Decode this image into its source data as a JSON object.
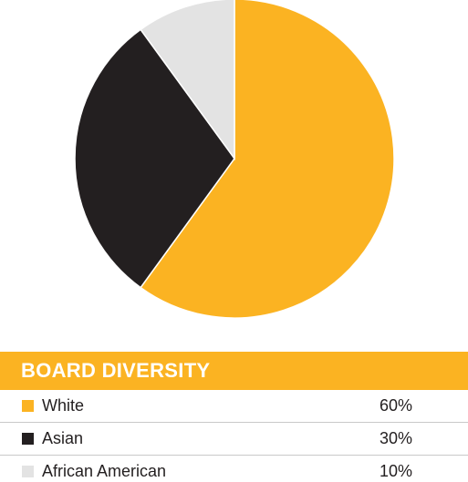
{
  "chart_data": {
    "type": "pie",
    "title": "BOARD DIVERSITY",
    "categories": [
      "White",
      "Asian",
      "African American"
    ],
    "values": [
      60,
      30,
      10
    ],
    "value_labels": [
      "60%",
      "30%",
      "10%"
    ],
    "colors": [
      "#FBB322",
      "#231F20",
      "#E3E3E3"
    ],
    "legend_placement": "bottom"
  },
  "header_color": "#FBB322"
}
